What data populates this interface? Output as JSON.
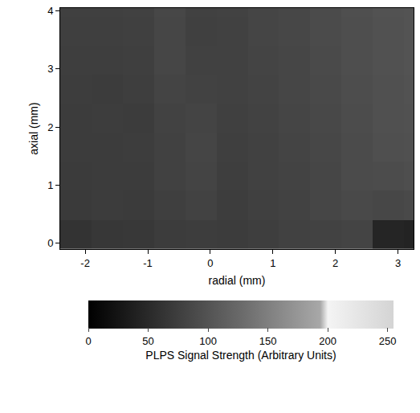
{
  "chart_data": {
    "type": "heatmap",
    "x_label": "radial (mm)",
    "y_label": "axial (mm)",
    "xlim": [
      -2.4,
      3.25
    ],
    "xticks": [
      -2,
      -1,
      0,
      1,
      2,
      3
    ],
    "ylim": [
      -0.1,
      4.05
    ],
    "yticks": [
      0,
      1,
      2,
      3,
      4
    ],
    "grid": false,
    "x": [
      -2.15,
      -1.65,
      -1.15,
      -0.65,
      -0.15,
      0.35,
      0.85,
      1.35,
      1.85,
      2.35,
      2.85,
      3.35
    ],
    "y": [
      0.15,
      0.65,
      1.15,
      1.65,
      2.15,
      2.65,
      3.15,
      3.65,
      4.15
    ],
    "z": [
      [
        62,
        66,
        68,
        72,
        74,
        72,
        75,
        78,
        80,
        82,
        45,
        42
      ],
      [
        70,
        72,
        71,
        76,
        80,
        74,
        77,
        80,
        84,
        88,
        86,
        88
      ],
      [
        71,
        73,
        72,
        78,
        82,
        75,
        78,
        81,
        85,
        90,
        92,
        94
      ],
      [
        72,
        72,
        74,
        79,
        83,
        76,
        79,
        82,
        86,
        91,
        95,
        96
      ],
      [
        73,
        74,
        73,
        80,
        82,
        77,
        80,
        83,
        87,
        92,
        96,
        98
      ],
      [
        74,
        73,
        75,
        82,
        80,
        78,
        81,
        84,
        88,
        93,
        97,
        99
      ],
      [
        75,
        75,
        76,
        84,
        78,
        79,
        82,
        85,
        89,
        94,
        98,
        100
      ],
      [
        76,
        76,
        77,
        85,
        77,
        79,
        83,
        86,
        90,
        94,
        98,
        100
      ],
      [
        77,
        77,
        78,
        86,
        78,
        80,
        83,
        86,
        90,
        95,
        99,
        100
      ]
    ],
    "colorbar_title": "PLPS Signal Strength (Arbitrary Units)",
    "zlim": [
      0,
      255
    ],
    "zticks": [
      0,
      50,
      100,
      150,
      200,
      250
    ]
  }
}
